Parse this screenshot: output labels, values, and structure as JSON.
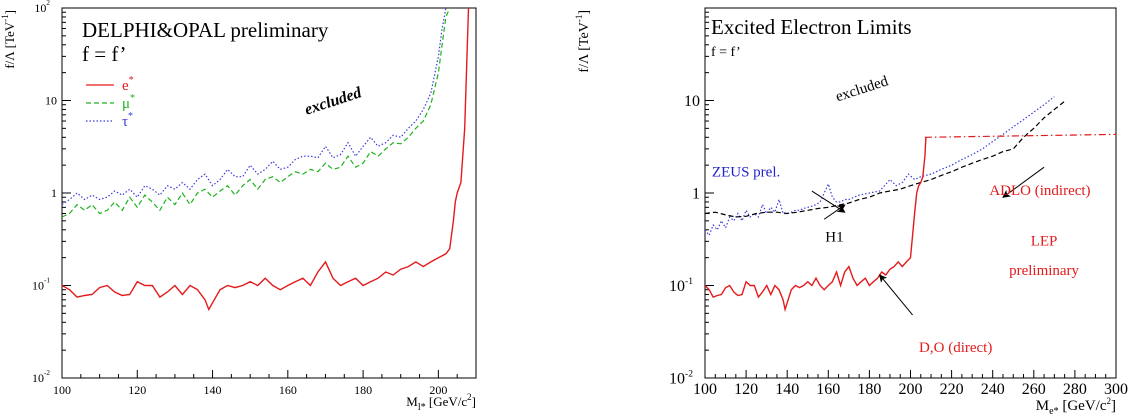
{
  "chart_data": [
    {
      "type": "line",
      "title": "DELPHI&OPAL preliminary",
      "subtitle": "f = f’",
      "xlabel_main": "M",
      "xlabel_sub": "l*",
      "xlabel_unit": "[GeV/c",
      "xlabel_sup": "2",
      "xlabel_end": "]",
      "ylabel": "f/Λ [TeV",
      "ylabel_sup": "-1",
      "ylabel_end": "]",
      "yscale": "log",
      "xlim": [
        100,
        210
      ],
      "ylim": [
        0.01,
        100
      ],
      "xticks": [
        100,
        120,
        140,
        160,
        180,
        200
      ],
      "xtick_labels": [
        "100",
        "120",
        "140",
        "160",
        "180",
        "200"
      ],
      "yticks": [
        {
          "value": 0.01,
          "base": "10",
          "exp": "-2"
        },
        {
          "value": 0.1,
          "base": "10",
          "exp": "-1"
        },
        {
          "value": 1,
          "base": "1",
          "exp": ""
        },
        {
          "value": 10,
          "base": "10",
          "exp": ""
        },
        {
          "value": 100,
          "base": "10",
          "exp": "2"
        }
      ],
      "annotation": "excluded",
      "legend_placement": "top-left",
      "series": [
        {
          "name": "e*",
          "base": "e",
          "sup": "*",
          "color": "#e41a1c",
          "style": "solid",
          "x": [
            100,
            102,
            104,
            106,
            108,
            110,
            112,
            114,
            116,
            118,
            120,
            122,
            124,
            126,
            128,
            130,
            132,
            134,
            136,
            138,
            139,
            140,
            142,
            144,
            146,
            148,
            150,
            152,
            154,
            156,
            158,
            160,
            162,
            164,
            166,
            168,
            170,
            172,
            174,
            176,
            178,
            180,
            182,
            184,
            186,
            188,
            190,
            192,
            194,
            196,
            198,
            200,
            202,
            203,
            204,
            204.5,
            205,
            206,
            207,
            208
          ],
          "y": [
            0.1,
            0.09,
            0.075,
            0.078,
            0.08,
            0.095,
            0.1,
            0.085,
            0.078,
            0.08,
            0.11,
            0.1,
            0.1,
            0.075,
            0.085,
            0.1,
            0.08,
            0.1,
            0.09,
            0.07,
            0.055,
            0.065,
            0.09,
            0.1,
            0.095,
            0.1,
            0.11,
            0.1,
            0.12,
            0.1,
            0.09,
            0.1,
            0.11,
            0.12,
            0.1,
            0.14,
            0.18,
            0.12,
            0.1,
            0.11,
            0.12,
            0.1,
            0.11,
            0.12,
            0.14,
            0.13,
            0.15,
            0.16,
            0.18,
            0.16,
            0.18,
            0.2,
            0.22,
            0.25,
            0.5,
            0.8,
            1.0,
            1.3,
            5.0,
            100
          ]
        },
        {
          "name": "μ*",
          "base": "μ",
          "sup": "*",
          "color": "#1db31d",
          "style": "dashed",
          "x": [
            100,
            102,
            104,
            106,
            108,
            110,
            112,
            114,
            116,
            118,
            120,
            122,
            124,
            126,
            128,
            130,
            132,
            134,
            136,
            138,
            140,
            142,
            144,
            146,
            148,
            150,
            152,
            154,
            156,
            158,
            160,
            162,
            164,
            166,
            168,
            170,
            172,
            174,
            176,
            178,
            180,
            182,
            184,
            186,
            188,
            190,
            192,
            194,
            196,
            198,
            200,
            201,
            202,
            203
          ],
          "y": [
            0.55,
            0.6,
            0.75,
            0.65,
            0.75,
            0.6,
            0.65,
            0.8,
            0.65,
            0.9,
            0.7,
            0.95,
            0.8,
            0.65,
            0.9,
            0.75,
            1.0,
            0.75,
            1.0,
            1.1,
            0.9,
            1.05,
            1.2,
            0.95,
            1.2,
            1.4,
            1.1,
            1.4,
            1.5,
            1.3,
            1.5,
            1.7,
            1.6,
            1.8,
            1.7,
            2.1,
            1.8,
            1.9,
            2.5,
            1.9,
            2.1,
            2.8,
            2.5,
            3.0,
            3.5,
            3.4,
            4.0,
            5.0,
            6.0,
            9.0,
            20,
            40,
            80,
            100
          ]
        },
        {
          "name": "τ*",
          "base": "τ",
          "sup": "*",
          "color": "#3b3bd9",
          "style": "dotted",
          "x": [
            100,
            102,
            104,
            106,
            108,
            110,
            112,
            114,
            116,
            118,
            120,
            122,
            124,
            126,
            128,
            130,
            132,
            134,
            136,
            138,
            140,
            142,
            144,
            146,
            148,
            150,
            152,
            154,
            156,
            158,
            160,
            162,
            164,
            166,
            168,
            170,
            172,
            174,
            176,
            178,
            180,
            182,
            184,
            186,
            188,
            190,
            192,
            194,
            196,
            198,
            200,
            201,
            202
          ],
          "y": [
            0.75,
            0.85,
            1.0,
            0.85,
            0.95,
            0.85,
            0.9,
            1.05,
            0.95,
            1.1,
            0.9,
            1.2,
            1.1,
            0.95,
            1.2,
            1.1,
            1.3,
            1.1,
            1.4,
            1.6,
            1.2,
            1.4,
            1.8,
            1.5,
            1.5,
            2.0,
            1.6,
            1.8,
            2.2,
            1.8,
            1.9,
            2.3,
            2.5,
            2.5,
            2.4,
            3.2,
            2.4,
            2.6,
            3.5,
            2.5,
            3.2,
            4.0,
            3.2,
            3.5,
            4.2,
            4.0,
            5.0,
            6.0,
            8.0,
            12.0,
            30,
            60,
            100
          ]
        }
      ]
    },
    {
      "type": "line",
      "title": "Excited Electron Limits",
      "subtitle": "f = f’",
      "xlabel_main": "M",
      "xlabel_sub": "e*",
      "xlabel_unit": "[GeV/c",
      "xlabel_sup": "2",
      "xlabel_end": "]",
      "ylabel": "f/Λ [TeV",
      "ylabel_sup": "-1",
      "ylabel_end": "]",
      "yscale": "log",
      "xlim": [
        100,
        300
      ],
      "ylim": [
        0.01,
        100
      ],
      "xticks": [
        100,
        120,
        140,
        160,
        180,
        200,
        220,
        240,
        260,
        280,
        300
      ],
      "xtick_labels": [
        "100",
        "120",
        "140",
        "160",
        "180",
        "200",
        "220",
        "240",
        "260",
        "280",
        "300"
      ],
      "yticks": [
        {
          "value": 0.01,
          "base": "10",
          "exp": "-2"
        },
        {
          "value": 0.1,
          "base": "10",
          "exp": "-1"
        },
        {
          "value": 1,
          "base": "1",
          "exp": ""
        },
        {
          "value": 10,
          "base": "10",
          "exp": ""
        }
      ],
      "annotations": [
        {
          "text": "excluded",
          "color": "#000000",
          "x": 177,
          "y": 12,
          "rotate": -18
        },
        {
          "text": "ZEUS prel.",
          "color": "#2222cc",
          "x": 120,
          "y": 1.5,
          "rotate": 0
        },
        {
          "text": "H1",
          "color": "#000000",
          "x": 163,
          "y": 0.3,
          "rotate": 0
        },
        {
          "text": "ADLO (indirect)",
          "color": "#e41a1c",
          "x": 263,
          "y": 0.95,
          "rotate": 0
        },
        {
          "text": "LEP",
          "color": "#e41a1c",
          "x": 265,
          "y": 0.27,
          "rotate": 0
        },
        {
          "text": "preliminary",
          "color": "#e41a1c",
          "x": 265,
          "y": 0.13,
          "rotate": 0
        },
        {
          "text": "D,O (direct)",
          "color": "#e41a1c",
          "x": 222,
          "y": 0.019,
          "rotate": 0
        }
      ],
      "arrows": [
        {
          "from": [
            152,
            1.05
          ],
          "to": [
            168,
            0.62
          ]
        },
        {
          "from": [
            158,
            0.52
          ],
          "to": [
            168,
            0.74
          ]
        },
        {
          "from": [
            265,
            1.9
          ],
          "to": [
            245,
            0.9
          ]
        },
        {
          "from": [
            201,
            0.048
          ],
          "to": [
            185,
            0.13
          ]
        }
      ],
      "series": [
        {
          "name": "ZEUS prel.",
          "color": "#3b3bd9",
          "style": "dotted",
          "x": [
            100,
            102,
            104,
            106,
            108,
            110,
            112,
            114,
            116,
            118,
            120,
            122,
            124,
            126,
            128,
            130,
            132,
            134,
            136,
            138,
            140,
            142,
            144,
            146,
            148,
            150,
            152,
            154,
            156,
            158,
            160,
            162,
            164,
            166,
            168,
            170,
            175,
            180,
            185,
            190,
            193,
            196,
            199,
            202,
            205,
            210,
            215,
            220,
            225,
            230,
            235,
            240,
            245,
            250,
            255,
            260,
            265,
            270
          ],
          "y": [
            0.4,
            0.35,
            0.45,
            0.4,
            0.5,
            0.42,
            0.55,
            0.5,
            0.6,
            0.5,
            0.65,
            0.55,
            0.6,
            0.55,
            0.75,
            0.6,
            0.7,
            0.62,
            0.85,
            0.6,
            0.6,
            0.62,
            0.65,
            0.65,
            0.68,
            0.7,
            0.72,
            0.75,
            0.8,
            1.0,
            1.25,
            0.9,
            0.8,
            0.8,
            0.85,
            0.85,
            0.95,
            1.0,
            1.05,
            1.4,
            1.2,
            1.3,
            1.6,
            1.4,
            1.5,
            1.6,
            1.8,
            2.0,
            2.3,
            2.6,
            3.0,
            3.6,
            4.3,
            5.2,
            6.2,
            7.5,
            9.0,
            11.0
          ]
        },
        {
          "name": "H1",
          "color": "#000000",
          "style": "dashed",
          "x": [
            100,
            105,
            110,
            115,
            120,
            125,
            130,
            135,
            140,
            145,
            150,
            155,
            160,
            165,
            170,
            175,
            180,
            185,
            190,
            195,
            200,
            205,
            210,
            215,
            220,
            225,
            230,
            235,
            240,
            245,
            250,
            255,
            260,
            265,
            270,
            275
          ],
          "y": [
            0.6,
            0.62,
            0.58,
            0.55,
            0.56,
            0.6,
            0.62,
            0.62,
            0.6,
            0.62,
            0.65,
            0.68,
            0.7,
            0.74,
            0.78,
            0.85,
            0.9,
            1.0,
            1.05,
            1.1,
            1.2,
            1.3,
            1.4,
            1.55,
            1.7,
            1.9,
            2.1,
            2.3,
            2.5,
            2.8,
            3.0,
            4.0,
            5.0,
            6.5,
            8.0,
            9.8
          ]
        },
        {
          "name": "ADLO (indirect)",
          "color": "#e41a1c",
          "style": "dashdot",
          "x": [
            207,
            300
          ],
          "y": [
            4.0,
            4.3
          ]
        },
        {
          "name": "D,O (direct)",
          "color": "#e41a1c",
          "style": "solid",
          "x": [
            100,
            102,
            104,
            106,
            108,
            110,
            112,
            114,
            116,
            118,
            120,
            122,
            124,
            126,
            128,
            130,
            132,
            134,
            136,
            138,
            139,
            140,
            142,
            144,
            146,
            148,
            150,
            152,
            154,
            156,
            158,
            160,
            162,
            164,
            166,
            168,
            170,
            172,
            174,
            176,
            178,
            180,
            182,
            184,
            186,
            188,
            190,
            192,
            194,
            196,
            198,
            200,
            202,
            203,
            204,
            205,
            206,
            207,
            207.5
          ],
          "y": [
            0.1,
            0.09,
            0.075,
            0.078,
            0.08,
            0.095,
            0.1,
            0.085,
            0.078,
            0.08,
            0.11,
            0.1,
            0.1,
            0.075,
            0.085,
            0.1,
            0.08,
            0.1,
            0.09,
            0.07,
            0.055,
            0.065,
            0.09,
            0.1,
            0.095,
            0.1,
            0.11,
            0.1,
            0.12,
            0.1,
            0.09,
            0.1,
            0.11,
            0.14,
            0.1,
            0.14,
            0.16,
            0.12,
            0.1,
            0.11,
            0.12,
            0.1,
            0.11,
            0.12,
            0.14,
            0.13,
            0.15,
            0.16,
            0.18,
            0.16,
            0.18,
            0.2,
            0.6,
            1.0,
            1.2,
            1.3,
            1.5,
            2.5,
            4.0
          ]
        }
      ]
    }
  ]
}
